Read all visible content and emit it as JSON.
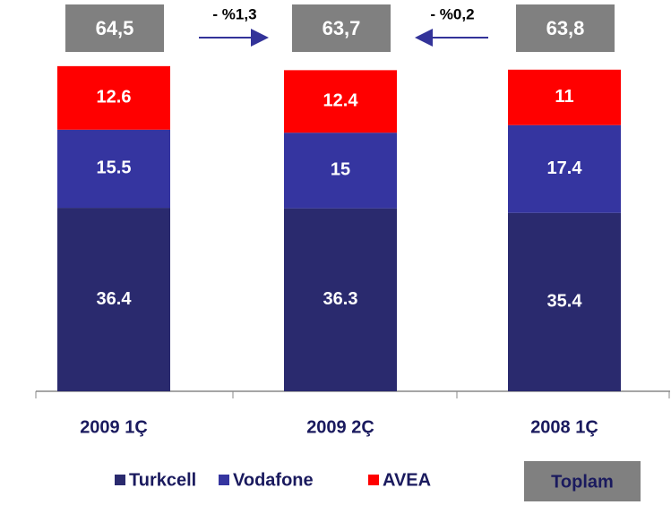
{
  "chart_data": {
    "type": "stacked_bar",
    "categories": [
      "2009 1Ç",
      "2009 2Ç",
      "2008 1Ç"
    ],
    "series": [
      {
        "name": "Turkcell",
        "color": "#2a2a6e",
        "values": [
          36.4,
          36.3,
          35.4
        ]
      },
      {
        "name": "Vodafone",
        "color": "#3535a0",
        "values": [
          15.5,
          15,
          17.4
        ]
      },
      {
        "name": "AVEA",
        "color": "#ff0000",
        "values": [
          12.6,
          12.4,
          11
        ]
      }
    ],
    "totals": {
      "name": "Toplam",
      "color": "#808080",
      "values": [
        64.5,
        63.7,
        63.8
      ],
      "value_labels": [
        "64,5",
        "63,7",
        "63,8"
      ]
    },
    "annotations": [
      "- %1,3",
      "- %0,2"
    ]
  }
}
